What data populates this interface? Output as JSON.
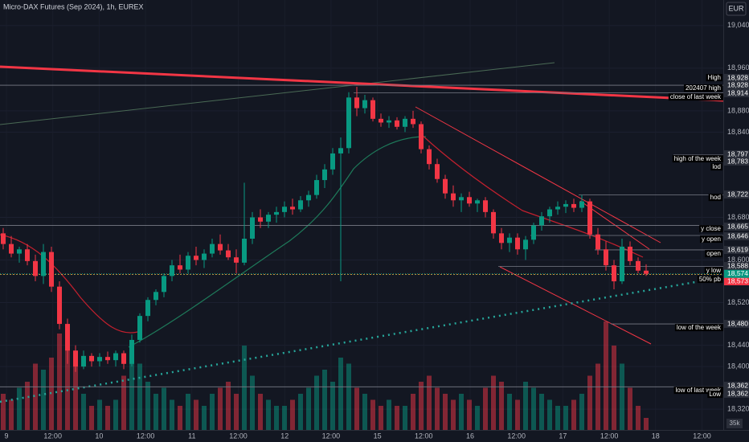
{
  "chart_data": {
    "type": "candlestick",
    "title": "Micro-DAX Futures (Sep 2024), 1h, EUREX",
    "currency": "EUR",
    "volume_scale_label": "35k",
    "up_color": "#089981",
    "down_color": "#f23645",
    "ylim": [
      18281,
      19088
    ],
    "yticks": [
      {
        "value": 19040,
        "label": "19,040"
      },
      {
        "value": 18960,
        "label": "18,960"
      },
      {
        "value": 18880,
        "label": "18,880"
      },
      {
        "value": 18840,
        "label": "18,840"
      },
      {
        "value": 18680,
        "label": "18,680"
      },
      {
        "value": 18600,
        "label": "18,600"
      },
      {
        "value": 18520,
        "label": "18,520"
      },
      {
        "value": 18440,
        "label": "18,440"
      },
      {
        "value": 18400,
        "label": "18,400"
      },
      {
        "value": 18320,
        "label": "18,320"
      }
    ],
    "x_labels": [
      "9",
      "12:00",
      "10",
      "12:00",
      "11",
      "12:00",
      "12",
      "12:00",
      "15",
      "12:00",
      "16",
      "12:00",
      "17",
      "12:00",
      "18",
      "12:00"
    ],
    "candles": [
      [
        18650,
        18660,
        18620,
        18630
      ],
      [
        18630,
        18645,
        18605,
        18612
      ],
      [
        18612,
        18625,
        18595,
        18620
      ],
      [
        18620,
        18630,
        18590,
        18598
      ],
      [
        18598,
        18610,
        18560,
        18570
      ],
      [
        18570,
        18630,
        18555,
        18615
      ],
      [
        18615,
        18625,
        18540,
        18550
      ],
      [
        18550,
        18560,
        18470,
        18480
      ],
      [
        18480,
        18490,
        18405,
        18430
      ],
      [
        18430,
        18440,
        18390,
        18400
      ],
      [
        18400,
        18430,
        18395,
        18420
      ],
      [
        18420,
        18425,
        18400,
        18410
      ],
      [
        18410,
        18425,
        18400,
        18418
      ],
      [
        18418,
        18428,
        18405,
        18412
      ],
      [
        18412,
        18430,
        18400,
        18425
      ],
      [
        18425,
        18430,
        18395,
        18405
      ],
      [
        18405,
        18460,
        18400,
        18450
      ],
      [
        18450,
        18500,
        18445,
        18495
      ],
      [
        18495,
        18530,
        18485,
        18525
      ],
      [
        18525,
        18545,
        18515,
        18540
      ],
      [
        18540,
        18575,
        18530,
        18570
      ],
      [
        18570,
        18600,
        18560,
        18590
      ],
      [
        18590,
        18610,
        18575,
        18582
      ],
      [
        18582,
        18615,
        18575,
        18608
      ],
      [
        18608,
        18625,
        18590,
        18600
      ],
      [
        18600,
        18620,
        18585,
        18612
      ],
      [
        18612,
        18640,
        18605,
        18630
      ],
      [
        18630,
        18648,
        18610,
        18618
      ],
      [
        18618,
        18630,
        18600,
        18605
      ],
      [
        18605,
        18620,
        18575,
        18595
      ],
      [
        18595,
        18745,
        18590,
        18640
      ],
      [
        18640,
        18690,
        18630,
        18680
      ],
      [
        18680,
        18695,
        18660,
        18672
      ],
      [
        18672,
        18690,
        18660,
        18685
      ],
      [
        18685,
        18700,
        18670,
        18690
      ],
      [
        18690,
        18710,
        18680,
        18700
      ],
      [
        18700,
        18715,
        18685,
        18695
      ],
      [
        18695,
        18720,
        18690,
        18712
      ],
      [
        18712,
        18730,
        18700,
        18722
      ],
      [
        18722,
        18760,
        18715,
        18750
      ],
      [
        18750,
        18780,
        18735,
        18770
      ],
      [
        18770,
        18810,
        18760,
        18800
      ],
      [
        18800,
        18830,
        18560,
        18810
      ],
      [
        18810,
        18915,
        18800,
        18905
      ],
      [
        18905,
        18925,
        18870,
        18885
      ],
      [
        18885,
        18910,
        18875,
        18900
      ],
      [
        18900,
        18905,
        18860,
        18865
      ],
      [
        18865,
        18875,
        18850,
        18858
      ],
      [
        18858,
        18870,
        18848,
        18862
      ],
      [
        18862,
        18868,
        18845,
        18850
      ],
      [
        18850,
        18870,
        18840,
        18865
      ],
      [
        18865,
        18880,
        18848,
        18855
      ],
      [
        18855,
        18860,
        18800,
        18808
      ],
      [
        18808,
        18815,
        18770,
        18780
      ],
      [
        18780,
        18790,
        18745,
        18752
      ],
      [
        18752,
        18760,
        18715,
        18725
      ],
      [
        18725,
        18740,
        18700,
        18712
      ],
      [
        18712,
        18725,
        18690,
        18718
      ],
      [
        18718,
        18728,
        18700,
        18706
      ],
      [
        18706,
        18715,
        18690,
        18712
      ],
      [
        18712,
        18718,
        18680,
        18690
      ],
      [
        18690,
        18695,
        18640,
        18650
      ],
      [
        18650,
        18660,
        18620,
        18632
      ],
      [
        18632,
        18650,
        18615,
        18642
      ],
      [
        18642,
        18650,
        18610,
        18620
      ],
      [
        18620,
        18645,
        18600,
        18638
      ],
      [
        18638,
        18670,
        18630,
        18665
      ],
      [
        18665,
        18690,
        18655,
        18682
      ],
      [
        18682,
        18700,
        18670,
        18695
      ],
      [
        18695,
        18710,
        18685,
        18700
      ],
      [
        18700,
        18712,
        18688,
        18705
      ],
      [
        18705,
        18715,
        18690,
        18698
      ],
      [
        18698,
        18722,
        18690,
        18710
      ],
      [
        18710,
        18715,
        18640,
        18648
      ],
      [
        18648,
        18660,
        18610,
        18620
      ],
      [
        18620,
        18635,
        18580,
        18590
      ],
      [
        18590,
        18600,
        18545,
        18560
      ],
      [
        18560,
        18640,
        18555,
        18625
      ],
      [
        18625,
        18635,
        18590,
        18598
      ],
      [
        18598,
        18605,
        18575,
        18580
      ],
      [
        18580,
        18592,
        18570,
        18574
      ]
    ],
    "volume_lim": [
      0,
      100
    ],
    "volume": [
      30,
      25,
      35,
      40,
      55,
      50,
      60,
      80,
      85,
      55,
      30,
      20,
      25,
      20,
      25,
      45,
      60,
      55,
      40,
      30,
      35,
      25,
      20,
      30,
      25,
      20,
      30,
      35,
      40,
      30,
      70,
      45,
      30,
      25,
      20,
      20,
      25,
      30,
      35,
      45,
      50,
      40,
      60,
      55,
      35,
      30,
      25,
      20,
      25,
      20,
      20,
      30,
      40,
      45,
      35,
      30,
      25,
      30,
      25,
      20,
      35,
      45,
      40,
      30,
      25,
      40,
      35,
      30,
      25,
      20,
      20,
      25,
      30,
      45,
      55,
      90,
      70,
      55,
      35,
      20,
      10
    ],
    "last_price": {
      "value": 18574,
      "label": "18,574"
    },
    "levels": [
      {
        "name": "High",
        "value": 18928,
        "label": "18,928"
      },
      {
        "name": "202407 high",
        "value": 18928,
        "label": "18,928"
      },
      {
        "name": "close of last week",
        "value": 18914,
        "label": "18,914"
      },
      {
        "name": "high of the week",
        "value": 18797,
        "label": "18,797"
      },
      {
        "name": "lod",
        "value": 18783,
        "label": "18,783"
      },
      {
        "name": "hod",
        "value": 18722,
        "label": "18,722"
      },
      {
        "name": "y close",
        "value": 18665,
        "label": "18,665"
      },
      {
        "name": "y open",
        "value": 18646,
        "label": "18,646"
      },
      {
        "name": "open",
        "value": 18619,
        "label": "18,619"
      },
      {
        "name": "y low",
        "value": 18588,
        "label": "18,588"
      },
      {
        "name": "50% pb",
        "value": 18573,
        "label": "18,573"
      },
      {
        "name": "low of the week",
        "value": 18480,
        "label": "18,480"
      },
      {
        "name": "low of last week",
        "value": 18362,
        "label": "18,362"
      },
      {
        "name": "Low",
        "value": 18362,
        "label": "18,362"
      }
    ]
  }
}
